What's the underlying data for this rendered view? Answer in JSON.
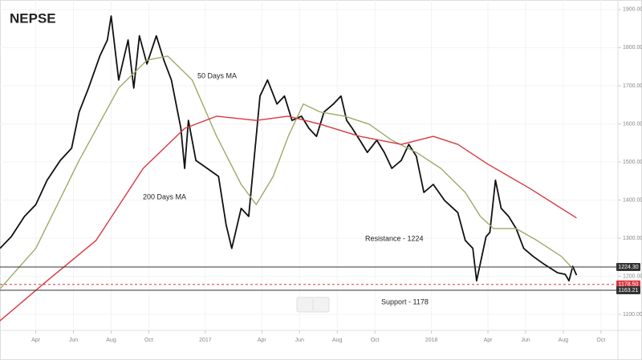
{
  "chart_data": {
    "type": "line",
    "title": "NEPSE",
    "xlim": [
      1.1,
      33.9
    ],
    "ylim": [
      1058,
      1925
    ],
    "xticks": [
      {
        "value": 3,
        "label": "Apr"
      },
      {
        "value": 5,
        "label": "Jun"
      },
      {
        "value": 7,
        "label": "Aug"
      },
      {
        "value": 9,
        "label": "Oct"
      },
      {
        "value": 12,
        "label": "2017"
      },
      {
        "value": 15,
        "label": "Apr"
      },
      {
        "value": 17,
        "label": "Jun"
      },
      {
        "value": 19,
        "label": "Aug"
      },
      {
        "value": 21,
        "label": "Oct"
      },
      {
        "value": 24,
        "label": "2018"
      },
      {
        "value": 27,
        "label": "Apr"
      },
      {
        "value": 29,
        "label": "Jun"
      },
      {
        "value": 31,
        "label": "Aug"
      },
      {
        "value": 33,
        "label": "Oct"
      }
    ],
    "yticks": [
      {
        "value": 1100,
        "label": "1100.00"
      },
      {
        "value": 1200,
        "label": "1200.00"
      },
      {
        "value": 1300,
        "label": "1300.00"
      },
      {
        "value": 1400,
        "label": "1400.00"
      },
      {
        "value": 1500,
        "label": "1500.00"
      },
      {
        "value": 1600,
        "label": "1600.00"
      },
      {
        "value": 1700,
        "label": "1700.00"
      },
      {
        "value": 1800,
        "label": "1800.00"
      },
      {
        "value": 1900,
        "label": "1900.00"
      }
    ],
    "grid": true,
    "series": [
      {
        "color": "#111111",
        "x": [
          1.1,
          1.7,
          2.4,
          3.0,
          3.6,
          4.3,
          4.9,
          5.3,
          5.8,
          6.4,
          6.8,
          7.0,
          7.4,
          7.9,
          8.2,
          8.5,
          8.9,
          9.4,
          9.8,
          10.2,
          10.7,
          10.9,
          11.1,
          11.5,
          12.1,
          12.7,
          13.1,
          13.4,
          13.9,
          14.3,
          14.7,
          14.9,
          15.3,
          15.8,
          16.2,
          16.6,
          17.1,
          17.5,
          17.9,
          18.3,
          18.8,
          19.2,
          19.5,
          19.8,
          20.2,
          20.6,
          21.1,
          21.5,
          21.9,
          22.4,
          22.8,
          23.2,
          23.6,
          24.1,
          24.7,
          25.4,
          25.8,
          26.2,
          26.4,
          26.9,
          27.1,
          27.4,
          27.7,
          28.1,
          28.5,
          28.9,
          29.4,
          30.0,
          30.7,
          31.1,
          31.3,
          31.5,
          31.7
        ],
        "values": [
          1273,
          1304,
          1357,
          1388,
          1452,
          1504,
          1536,
          1631,
          1694,
          1778,
          1820,
          1883,
          1715,
          1820,
          1694,
          1831,
          1757,
          1831,
          1767,
          1715,
          1588,
          1483,
          1609,
          1504,
          1483,
          1462,
          1336,
          1273,
          1378,
          1357,
          1567,
          1673,
          1715,
          1652,
          1673,
          1609,
          1620,
          1588,
          1567,
          1631,
          1652,
          1673,
          1609,
          1588,
          1557,
          1525,
          1557,
          1525,
          1483,
          1504,
          1546,
          1515,
          1420,
          1441,
          1399,
          1367,
          1294,
          1273,
          1188,
          1304,
          1315,
          1452,
          1378,
          1357,
          1325,
          1273,
          1252,
          1231,
          1209,
          1205,
          1188,
          1226,
          1203
        ]
      },
      {
        "color": "#9aab6a",
        "x": [
          1.1,
          3.0,
          5.3,
          7.4,
          8.9,
          10.0,
          11.3,
          12.6,
          13.9,
          14.7,
          15.6,
          16.4,
          17.2,
          18.1,
          19.4,
          20.7,
          21.9,
          23.2,
          24.5,
          25.8,
          26.6,
          27.3,
          28.5,
          29.6,
          30.9,
          31.5
        ],
        "values": [
          1167,
          1273,
          1504,
          1694,
          1767,
          1778,
          1715,
          1567,
          1441,
          1388,
          1462,
          1567,
          1652,
          1631,
          1620,
          1599,
          1557,
          1525,
          1483,
          1420,
          1357,
          1325,
          1325,
          1294,
          1252,
          1220
        ]
      },
      {
        "color": "#d9383f",
        "x": [
          1.1,
          3.6,
          6.2,
          8.7,
          10.9,
          12.6,
          14.7,
          16.4,
          18.1,
          20.2,
          22.4,
          24.1,
          25.4,
          27.0,
          29.2,
          31.7
        ],
        "values": [
          1083,
          1188,
          1294,
          1483,
          1588,
          1620,
          1609,
          1620,
          1599,
          1567,
          1546,
          1567,
          1546,
          1494,
          1431,
          1353
        ]
      }
    ],
    "levels": [
      {
        "value": 1224.3,
        "label": "1224.30",
        "color": "#333333"
      },
      {
        "value": 1178.5,
        "label": "1178.50",
        "color": "#d9383f"
      },
      {
        "value": 1163.21,
        "label": "1163.21",
        "color": "#333333"
      }
    ],
    "annotations": [
      "50 Days MA",
      "200 Days MA",
      "Resistance - 1224",
      "Support - 1178"
    ]
  }
}
